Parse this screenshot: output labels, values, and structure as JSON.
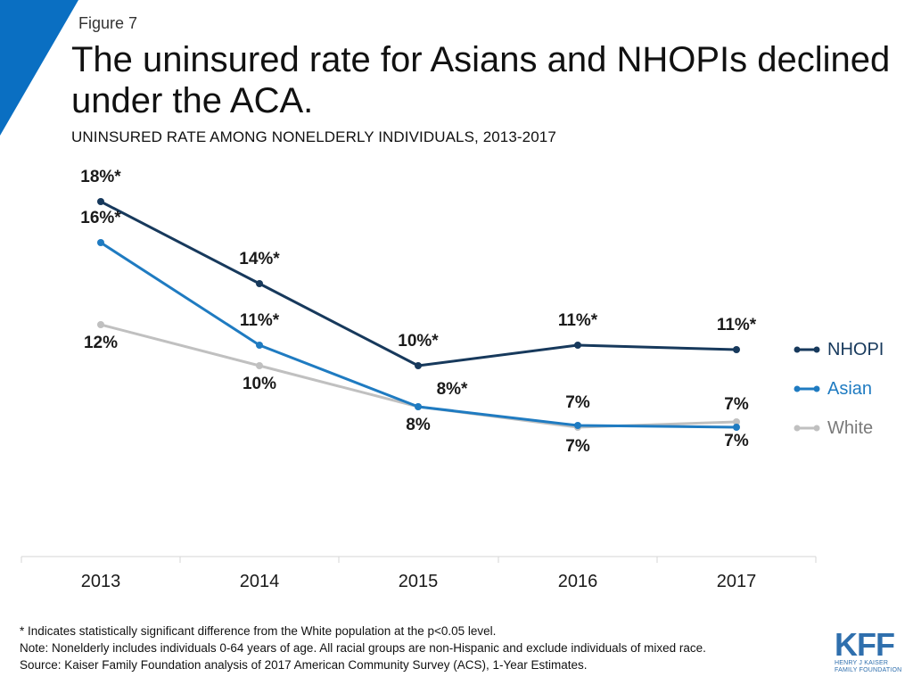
{
  "figure_label": "Figure 7",
  "title": "The uninsured rate for Asians and NHOPIs declined under the ACA.",
  "subtitle": "UNINSURED RATE AMONG NONELDERLY INDIVIDUALS, 2013-2017",
  "colors": {
    "nhopi": "#17395c",
    "asian": "#1f7bc1",
    "white": "#c0c0c0",
    "accent": "#0a6fc2"
  },
  "chart_data": {
    "type": "line",
    "categories": [
      "2013",
      "2014",
      "2015",
      "2016",
      "2017"
    ],
    "ylim": [
      0,
      20
    ],
    "series": [
      {
        "name": "NHOPI",
        "key": "nhopi",
        "values": [
          18,
          14,
          10,
          11,
          11
        ],
        "labels": [
          "18%*",
          "14%*",
          "10%*",
          "11%*",
          "11%*"
        ]
      },
      {
        "name": "Asian",
        "key": "asian",
        "values": [
          16,
          11,
          8,
          7,
          7
        ],
        "labels": [
          "16%*",
          "11%*",
          "8%*",
          "7%",
          "7%"
        ]
      },
      {
        "name": "White",
        "key": "white",
        "values": [
          12,
          10,
          8,
          7,
          7
        ],
        "labels": [
          "12%",
          "10%",
          "8%",
          "7%",
          "7%"
        ]
      }
    ]
  },
  "legend": [
    {
      "key": "nhopi",
      "label": "NHOPI"
    },
    {
      "key": "asian",
      "label": "Asian"
    },
    {
      "key": "white",
      "label": "White"
    }
  ],
  "footnotes": [
    "* Indicates statistically significant difference from the White population at the p<0.05 level.",
    "Note: Nonelderly includes individuals 0-64 years of age. All racial groups are non-Hispanic and exclude individuals of mixed race.",
    "Source: Kaiser Family Foundation analysis of 2017 American Community Survey (ACS), 1-Year Estimates."
  ],
  "logo": {
    "name": "KFF",
    "sub_line1": "HENRY J KAISER",
    "sub_line2": "FAMILY FOUNDATION"
  }
}
